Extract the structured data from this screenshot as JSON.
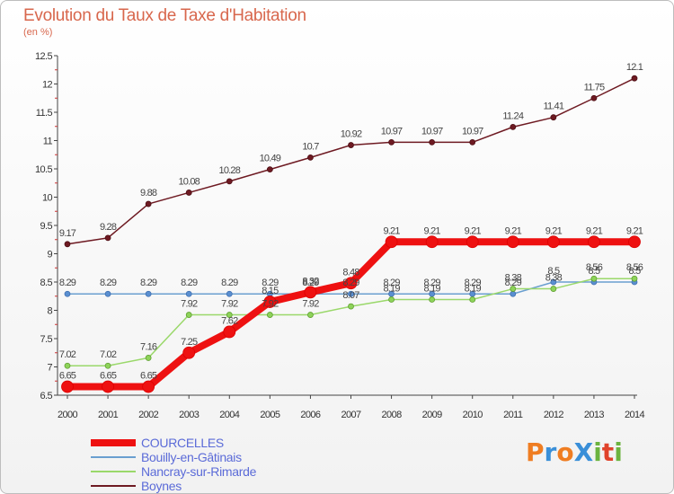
{
  "header": {
    "title": "Evolution du Taux de Taxe d'Habitation",
    "unit": "(en %)"
  },
  "logo": {
    "text": "ProXiti",
    "colors": [
      "#ef7d22",
      "#3a8fd8",
      "#ef7d22",
      "#3a8fd8",
      "#6cb33f",
      "#e0432b",
      "#6cb33f"
    ]
  },
  "chart_data": {
    "type": "line",
    "x": [
      2000,
      2001,
      2002,
      2003,
      2004,
      2005,
      2006,
      2007,
      2008,
      2009,
      2010,
      2011,
      2012,
      2013,
      2014
    ],
    "ylim": [
      6.5,
      12.5
    ],
    "yticks": [
      6.5,
      7,
      7.5,
      8,
      8.5,
      9,
      9.5,
      10,
      10.5,
      11,
      11.5,
      12,
      12.5
    ],
    "ytick_labels": [
      "6.5",
      "7",
      "7.5",
      "8",
      "8.5",
      "9",
      "9.5",
      "10",
      "10.5",
      "11",
      "11.5",
      "12",
      "12.5"
    ],
    "grid": false,
    "legend_position": "bottom-left",
    "series": [
      {
        "name": "COURCELLES",
        "color": "#ee1111",
        "values": [
          6.65,
          6.65,
          6.65,
          7.25,
          7.62,
          8.15,
          8.32,
          8.48,
          9.21,
          9.21,
          9.21,
          9.21,
          9.21,
          9.21,
          9.21
        ],
        "labels": [
          "6.65",
          "6.65",
          "6.65",
          "7.25",
          "7.62",
          "8.15",
          "8.32",
          "8.48",
          "9.21",
          "9.21",
          "9.21",
          "9.21",
          "9.21",
          "9.21",
          "9.21"
        ]
      },
      {
        "name": "Bouilly-en-Gâtinais",
        "color": "#6a9fd0",
        "values": [
          8.29,
          8.29,
          8.29,
          8.29,
          8.29,
          8.29,
          8.29,
          8.29,
          8.29,
          8.29,
          8.29,
          8.29,
          8.5,
          8.5,
          8.5
        ],
        "labels": [
          "8.29",
          "8.29",
          "8.29",
          "8.29",
          "8.29",
          "8.29",
          "8.29",
          "8.29",
          "8.29",
          "8.29",
          "8.29",
          "8.29",
          "8.5",
          "8.5",
          "8.5"
        ]
      },
      {
        "name": "Nancray-sur-Rimarde",
        "color": "#9ad86a",
        "values": [
          7.02,
          7.02,
          7.16,
          7.92,
          7.92,
          7.92,
          7.92,
          8.07,
          8.19,
          8.19,
          8.19,
          8.38,
          8.38,
          8.56,
          8.56
        ],
        "labels": [
          "7.02",
          "7.02",
          "7.16",
          "7.92",
          "7.92",
          "7.92",
          "7.92",
          "8.07",
          "8.19",
          "8.19",
          "8.19",
          "8.38",
          "8.38",
          "8.56",
          "8.56"
        ]
      },
      {
        "name": "Boynes",
        "color": "#6e1a22",
        "values": [
          9.17,
          9.28,
          9.88,
          10.08,
          10.28,
          10.49,
          10.7,
          10.92,
          10.97,
          10.97,
          10.97,
          11.24,
          11.41,
          11.75,
          12.1
        ],
        "labels": [
          "9.17",
          "9.28",
          "9.88",
          "10.08",
          "10.28",
          "10.49",
          "10.7",
          "10.92",
          "10.97",
          "10.97",
          "10.97",
          "11.24",
          "11.41",
          "11.75",
          "12.1"
        ]
      }
    ]
  }
}
